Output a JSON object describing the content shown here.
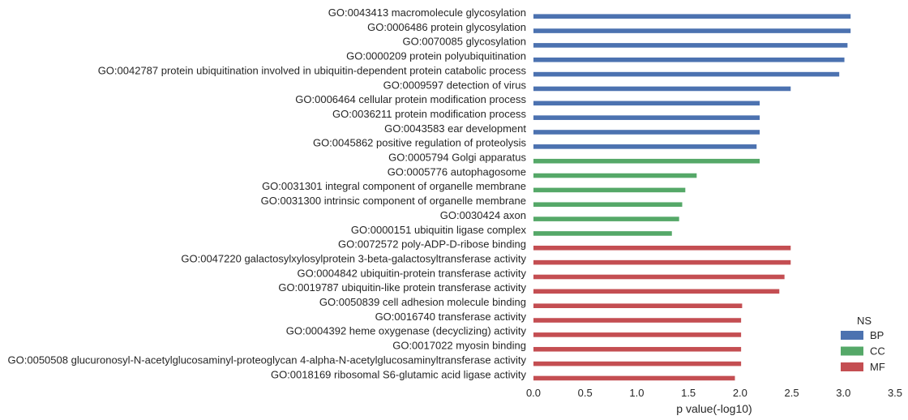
{
  "chart_data": {
    "type": "bar",
    "orientation": "horizontal",
    "title": "",
    "xlabel": "p value(-log10)",
    "ylabel": "",
    "xlim": [
      0.0,
      3.5
    ],
    "xticks": [
      "0.0",
      "0.5",
      "1.0",
      "1.5",
      "2.0",
      "2.5",
      "3.0",
      "3.5"
    ],
    "grid": false,
    "legend": {
      "title": "NS",
      "placement": "bottom-right",
      "entries": [
        {
          "name": "BP",
          "color": "#4c72b0"
        },
        {
          "name": "CC",
          "color": "#55a868"
        },
        {
          "name": "MF",
          "color": "#c44e52"
        }
      ]
    },
    "categories": [
      "GO:0043413 macromolecule glycosylation",
      "GO:0006486 protein glycosylation",
      "GO:0070085 glycosylation",
      "GO:0000209 protein polyubiquitination",
      "GO:0042787 protein ubiquitination involved in ubiquitin-dependent protein catabolic process",
      "GO:0009597 detection of virus",
      "GO:0006464 cellular protein modification process",
      "GO:0036211 protein modification process",
      "GO:0043583 ear development",
      "GO:0045862 positive regulation of proteolysis",
      "GO:0005794 Golgi apparatus",
      "GO:0005776 autophagosome",
      "GO:0031301 integral component of organelle membrane",
      "GO:0031300 intrinsic component of organelle membrane",
      "GO:0030424 axon",
      "GO:0000151 ubiquitin ligase complex",
      "GO:0072572 poly-ADP-D-ribose binding",
      "GO:0047220 galactosylxylosylprotein 3-beta-galactosyltransferase activity",
      "GO:0004842 ubiquitin-protein transferase activity",
      "GO:0019787 ubiquitin-like protein transferase activity",
      "GO:0050839 cell adhesion molecule binding",
      "GO:0016740 transferase activity",
      "GO:0004392 heme oxygenase (decyclizing) activity",
      "GO:0017022 myosin binding",
      "GO:0050508 glucuronosyl-N-acetylglucosaminyl-proteoglycan 4-alpha-N-acetylglucosaminyltransferase activity",
      "GO:0018169 ribosomal S6-glutamic acid ligase activity"
    ],
    "values": [
      3.07,
      3.07,
      3.04,
      3.01,
      2.96,
      2.49,
      2.19,
      2.19,
      2.19,
      2.16,
      2.19,
      1.58,
      1.47,
      1.44,
      1.41,
      1.34,
      2.49,
      2.49,
      2.43,
      2.38,
      2.02,
      2.01,
      2.01,
      2.01,
      2.01,
      1.95
    ],
    "ns": [
      "BP",
      "BP",
      "BP",
      "BP",
      "BP",
      "BP",
      "BP",
      "BP",
      "BP",
      "BP",
      "CC",
      "CC",
      "CC",
      "CC",
      "CC",
      "CC",
      "MF",
      "MF",
      "MF",
      "MF",
      "MF",
      "MF",
      "MF",
      "MF",
      "MF",
      "MF"
    ]
  }
}
